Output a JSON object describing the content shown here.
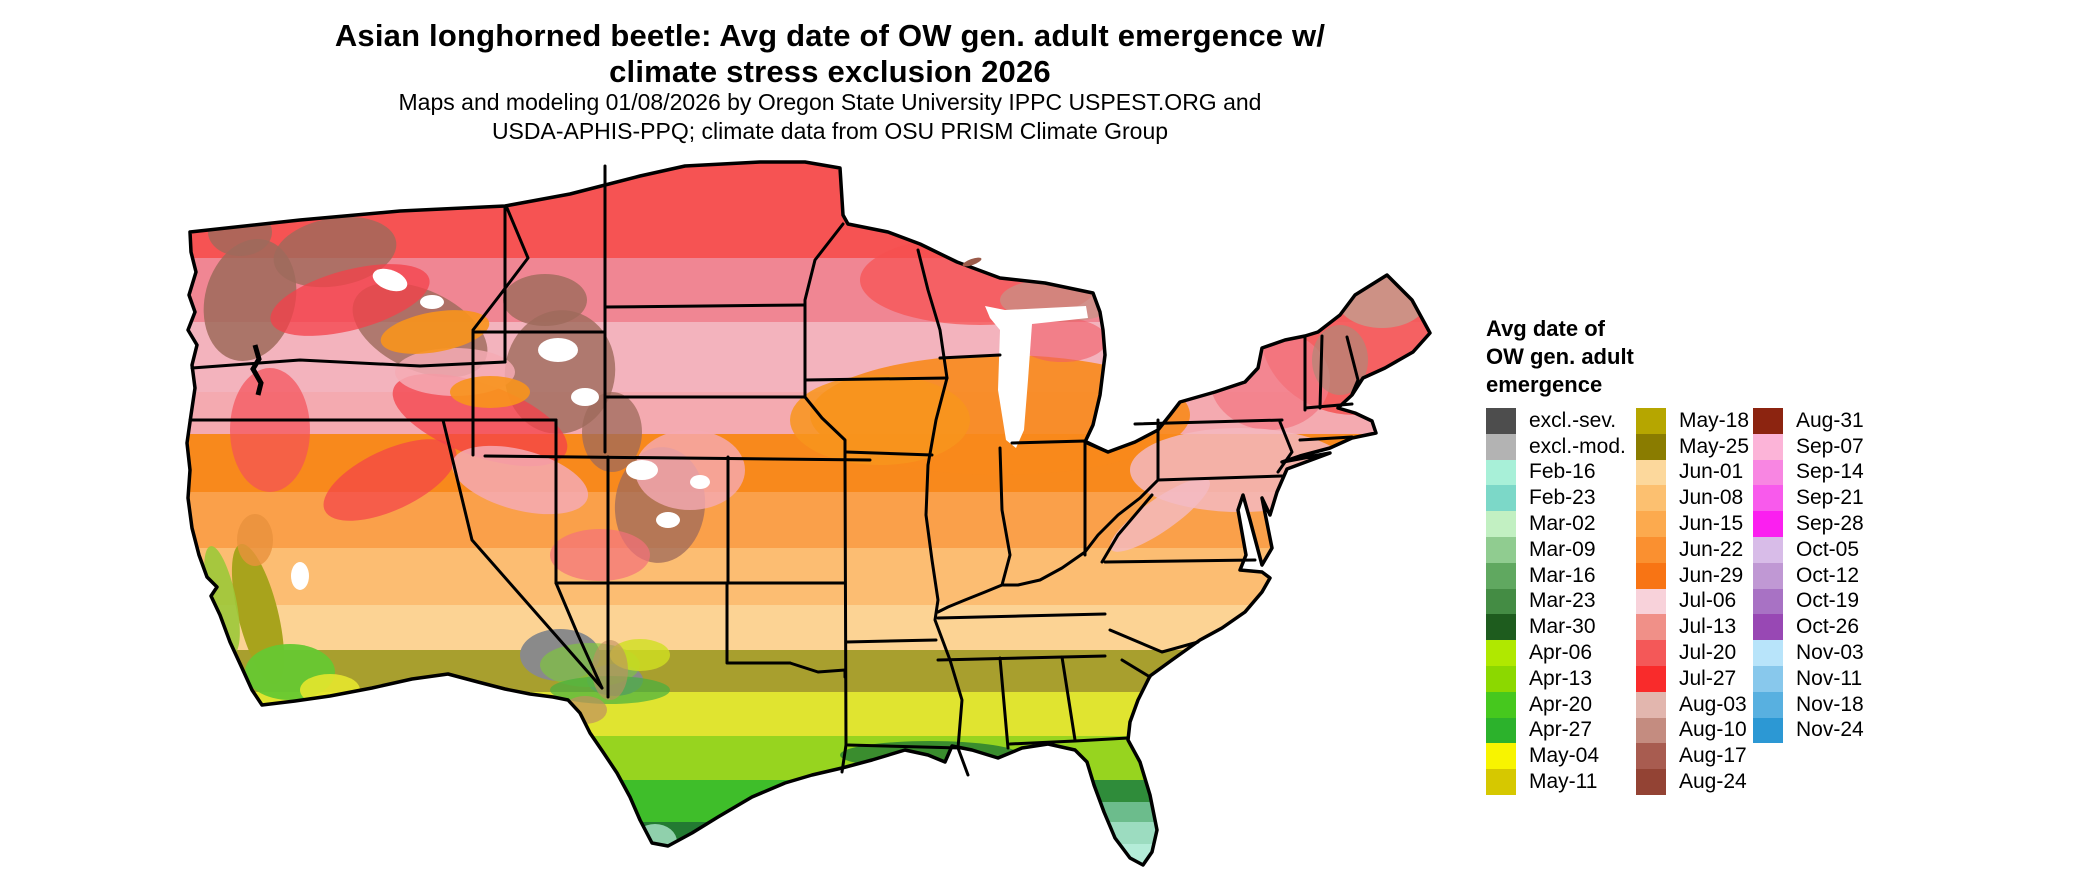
{
  "title": {
    "line1": "Asian longhorned beetle: Avg date of OW gen. adult emergence w/",
    "line2": "climate stress exclusion 2026"
  },
  "subtitle": {
    "line1": "Maps and modeling 01/08/2026 by Oregon State University IPPC USPEST.ORG and",
    "line2": "USDA-APHIS-PPQ; climate data from OSU PRISM Climate Group"
  },
  "legend": {
    "title_line1": "Avg date of",
    "title_line2": "OW gen. adult",
    "title_line3": "emergence",
    "columns": [
      [
        {
          "label": "excl.-sev.",
          "color": "#4d4d4d"
        },
        {
          "label": "excl.-mod.",
          "color": "#b3b3b3"
        },
        {
          "label": "Feb-16",
          "color": "#a8f0d8"
        },
        {
          "label": "Feb-23",
          "color": "#7cd8c8"
        },
        {
          "label": "Mar-02",
          "color": "#c2f0c2"
        },
        {
          "label": "Mar-09",
          "color": "#90cc90"
        },
        {
          "label": "Mar-16",
          "color": "#60a860"
        },
        {
          "label": "Mar-23",
          "color": "#448c44"
        },
        {
          "label": "Mar-30",
          "color": "#1e5c1e"
        },
        {
          "label": "Apr-06",
          "color": "#b0e800"
        },
        {
          "label": "Apr-13",
          "color": "#8cd800"
        },
        {
          "label": "Apr-20",
          "color": "#46c81e"
        },
        {
          "label": "Apr-27",
          "color": "#2cb22c"
        },
        {
          "label": "May-04",
          "color": "#f8f400"
        },
        {
          "label": "May-11",
          "color": "#d6c800"
        }
      ],
      [
        {
          "label": "May-18",
          "color": "#b6a600"
        },
        {
          "label": "May-25",
          "color": "#8a7c00"
        },
        {
          "label": "Jun-01",
          "color": "#fcd89c"
        },
        {
          "label": "Jun-08",
          "color": "#fcc070"
        },
        {
          "label": "Jun-15",
          "color": "#fcaa4e"
        },
        {
          "label": "Jun-22",
          "color": "#fa9030"
        },
        {
          "label": "Jun-29",
          "color": "#f87414"
        },
        {
          "label": "Jul-06",
          "color": "#f8d2da"
        },
        {
          "label": "Jul-13",
          "color": "#f09088"
        },
        {
          "label": "Jul-20",
          "color": "#f45858"
        },
        {
          "label": "Jul-27",
          "color": "#f92b2b"
        },
        {
          "label": "Aug-03",
          "color": "#e2b6ae"
        },
        {
          "label": "Aug-10",
          "color": "#c48c80"
        },
        {
          "label": "Aug-17",
          "color": "#a85c50"
        },
        {
          "label": "Aug-24",
          "color": "#934334"
        }
      ],
      [
        {
          "label": "Aug-31",
          "color": "#8c2410"
        },
        {
          "label": "Sep-07",
          "color": "#fcb4d8"
        },
        {
          "label": "Sep-14",
          "color": "#f886e2"
        },
        {
          "label": "Sep-21",
          "color": "#f85aec"
        },
        {
          "label": "Sep-28",
          "color": "#fb1ff0"
        },
        {
          "label": "Oct-05",
          "color": "#d8bce8"
        },
        {
          "label": "Oct-12",
          "color": "#c098d4"
        },
        {
          "label": "Oct-19",
          "color": "#a872c4"
        },
        {
          "label": "Oct-26",
          "color": "#9848b4"
        },
        {
          "label": "Nov-03",
          "color": "#b8e4fa"
        },
        {
          "label": "Nov-11",
          "color": "#88c8ec"
        },
        {
          "label": "Nov-18",
          "color": "#58b0e0"
        },
        {
          "label": "Nov-24",
          "color": "#2c98d4"
        }
      ]
    ]
  },
  "map": {
    "background_color": "#ffffff",
    "border_color": "#000000",
    "band_colors_north_to_south": [
      "#f65353",
      "#f08693",
      "#f3b3bd",
      "#f4aab0",
      "#f8891c",
      "#faa04a",
      "#fcbd72",
      "#fcd394",
      "#a89f2e",
      "#e0e430",
      "#97d41f",
      "#3fbe2a",
      "#237a32",
      "#86ceaa"
    ]
  }
}
